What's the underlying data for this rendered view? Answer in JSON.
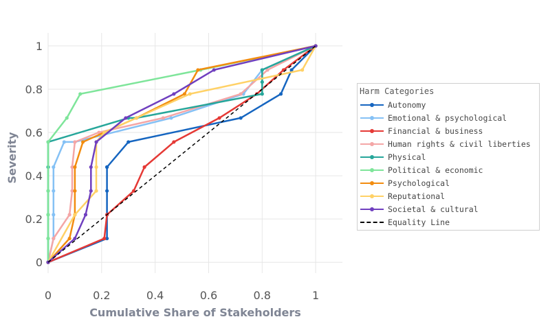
{
  "chart_data": {
    "type": "line",
    "title": "",
    "xlabel": "Cumulative Share of Stakeholders",
    "ylabel": "Severity",
    "xlim": [
      0,
      1.1
    ],
    "ylim": [
      -0.05,
      1.06
    ],
    "xticks": [
      0,
      0.2,
      0.4,
      0.6,
      0.8,
      1
    ],
    "xtick_labels": [
      "0",
      "0.2",
      "0.4",
      "0.6",
      "0.8",
      "1"
    ],
    "yticks": [
      0,
      0.2,
      0.4,
      0.6,
      0.8,
      1
    ],
    "ytick_labels": [
      "0",
      "0.2",
      "0.4",
      "0.6",
      "0.8",
      "1"
    ],
    "grid": true,
    "legend_title": "Harm Categories",
    "legend_position": "right",
    "series": [
      {
        "name": "Autonomy",
        "color": "#1565c0",
        "x": [
          0,
          0.22,
          0.22,
          0.22,
          0.22,
          0.22,
          0.3,
          0.72,
          0.87,
          0.91,
          1.0
        ],
        "y": [
          0,
          0.11,
          0.22,
          0.33,
          0.44,
          0.44,
          0.556,
          0.667,
          0.778,
          0.889,
          1.0
        ]
      },
      {
        "name": "Emotional & psychological",
        "color": "#85c1f5",
        "x": [
          0,
          0.02,
          0.02,
          0.02,
          0.02,
          0.06,
          0.1,
          0.46,
          0.73,
          0.8,
          1.0
        ],
        "y": [
          0,
          0.11,
          0.22,
          0.33,
          0.44,
          0.556,
          0.556,
          0.667,
          0.778,
          0.889,
          1.0
        ]
      },
      {
        "name": "Financial & business",
        "color": "#e53935",
        "x": [
          0,
          0.21,
          0.21,
          0.22,
          0.32,
          0.36,
          0.47,
          0.64,
          0.78,
          0.88,
          1.0
        ],
        "y": [
          0,
          0.11,
          0.11,
          0.22,
          0.33,
          0.44,
          0.556,
          0.667,
          0.778,
          0.889,
          1.0
        ]
      },
      {
        "name": "Human rights & civil liberties",
        "color": "#f4a6a6",
        "x": [
          0,
          0.02,
          0.08,
          0.09,
          0.09,
          0.1,
          0.19,
          0.43,
          0.72,
          0.82,
          1.0
        ],
        "y": [
          0,
          0.11,
          0.22,
          0.33,
          0.44,
          0.556,
          0.6,
          0.667,
          0.778,
          0.889,
          1.0
        ]
      },
      {
        "name": "Physical",
        "color": "#26a69a",
        "x": [
          0,
          0,
          0,
          0,
          0,
          0,
          0.3,
          0.33,
          0.8,
          0.8,
          0.8,
          1.0
        ],
        "y": [
          0,
          0.11,
          0.22,
          0.33,
          0.44,
          0.556,
          0.667,
          0.667,
          0.778,
          0.833,
          0.889,
          1.0
        ]
      },
      {
        "name": "Political & economic",
        "color": "#7ee59a",
        "x": [
          0,
          0,
          0,
          0,
          0,
          0.07,
          0.12,
          0.57,
          1.0
        ],
        "y": [
          0,
          0.11,
          0.22,
          0.33,
          0.556,
          0.667,
          0.778,
          0.889,
          1.0
        ]
      },
      {
        "name": "Psychological",
        "color": "#f28c0f",
        "x": [
          0,
          0.08,
          0.1,
          0.1,
          0.1,
          0.13,
          0.33,
          0.51,
          0.56,
          1.0
        ],
        "y": [
          0,
          0.11,
          0.22,
          0.33,
          0.44,
          0.556,
          0.667,
          0.778,
          0.889,
          1.0
        ]
      },
      {
        "name": "Reputational",
        "color": "#ffd166",
        "x": [
          0,
          0.1,
          0.18,
          0.18,
          0.18,
          0.21,
          0.33,
          0.53,
          0.95,
          1.0
        ],
        "y": [
          0,
          0.22,
          0.33,
          0.44,
          0.556,
          0.6,
          0.667,
          0.778,
          0.889,
          1.0
        ]
      },
      {
        "name": "Societal & cultural",
        "color": "#6f3fbf",
        "x": [
          0,
          0.1,
          0.14,
          0.16,
          0.16,
          0.18,
          0.29,
          0.47,
          0.62,
          1.0
        ],
        "y": [
          0,
          0.11,
          0.22,
          0.33,
          0.44,
          0.556,
          0.667,
          0.778,
          0.889,
          1.0
        ]
      },
      {
        "name": "Equality Line",
        "color": "#000000",
        "dashed": true,
        "x": [
          0,
          1
        ],
        "y": [
          0,
          1
        ]
      }
    ]
  }
}
